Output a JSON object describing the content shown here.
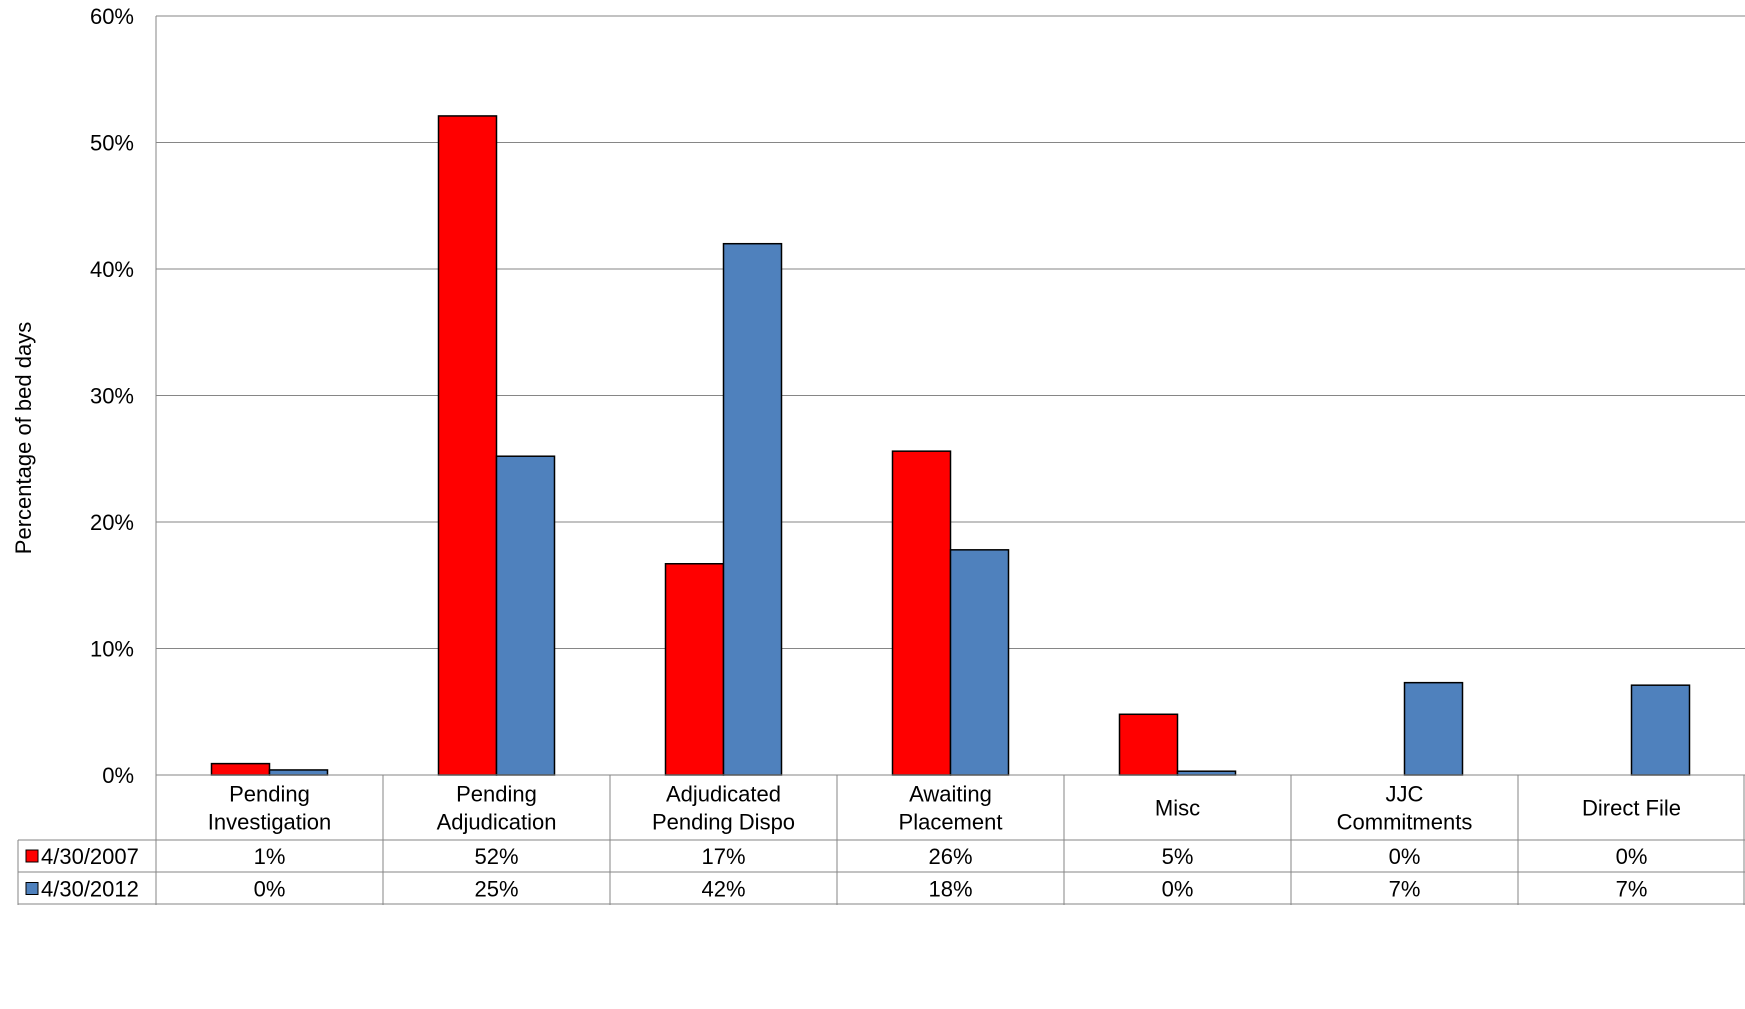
{
  "chart_data": {
    "type": "bar",
    "ylabel": "Percentage of bed days",
    "ylim": [
      0,
      60
    ],
    "yticks": [
      "0%",
      "10%",
      "20%",
      "30%",
      "40%",
      "50%",
      "60%"
    ],
    "categories": [
      [
        "Pending",
        "Investigation"
      ],
      [
        "Pending",
        "Adjudication"
      ],
      [
        "Adjudicated",
        "Pending Dispo"
      ],
      [
        "Awaiting",
        "Placement"
      ],
      [
        "Misc"
      ],
      [
        "JJC",
        "Commitments"
      ],
      [
        "Direct File"
      ]
    ],
    "series": [
      {
        "name": "4/30/2007",
        "color": "#ff0000",
        "values": [
          0.9,
          52.1,
          16.7,
          25.6,
          4.8,
          0,
          0
        ],
        "labels": [
          "1%",
          "52%",
          "17%",
          "26%",
          "5%",
          "0%",
          "0%"
        ]
      },
      {
        "name": "4/30/2012",
        "color": "#4f81bd",
        "values": [
          0.4,
          25.2,
          42.0,
          17.8,
          0.3,
          7.3,
          7.1
        ],
        "labels": [
          "0%",
          "25%",
          "42%",
          "18%",
          "0%",
          "7%",
          "7%"
        ]
      }
    ],
    "grid": true,
    "legend": "data-table-left"
  }
}
